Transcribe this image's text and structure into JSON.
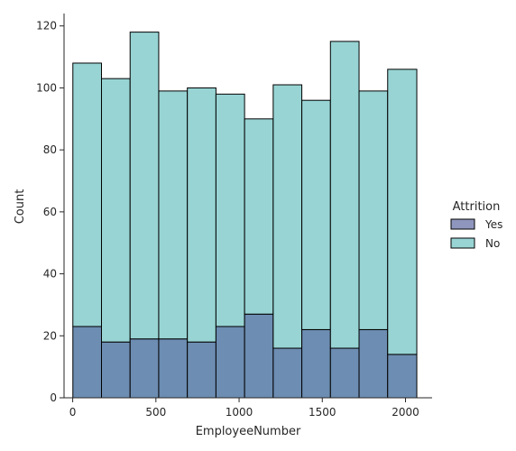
{
  "chart_data": {
    "type": "bar",
    "subtype": "stacked-histogram",
    "xlabel": "EmployeeNumber",
    "ylabel": "Count",
    "xlim": [
      -52,
      2160
    ],
    "ylim": [
      0,
      124
    ],
    "xticks": [
      0,
      500,
      1000,
      1500,
      2000
    ],
    "yticks": [
      0,
      20,
      40,
      60,
      80,
      100,
      120
    ],
    "bin_edges": [
      1,
      173,
      345,
      517,
      689,
      861,
      1033,
      1205,
      1377,
      1549,
      1721,
      1893,
      2068
    ],
    "series": [
      {
        "name": "Yes",
        "color": "#6d8db2",
        "values": [
          23,
          18,
          19,
          19,
          18,
          23,
          27,
          16,
          22,
          16,
          22,
          14
        ]
      },
      {
        "name": "No",
        "color": "#98d4d4",
        "values": [
          85,
          85,
          99,
          80,
          82,
          75,
          63,
          85,
          74,
          99,
          77,
          92
        ]
      }
    ],
    "legend": {
      "title": "Attrition",
      "placement": "right",
      "entries": [
        {
          "label": "Yes",
          "color": "#8f96bd"
        },
        {
          "label": "No",
          "color": "#98d4d4"
        }
      ]
    },
    "grid": false
  }
}
